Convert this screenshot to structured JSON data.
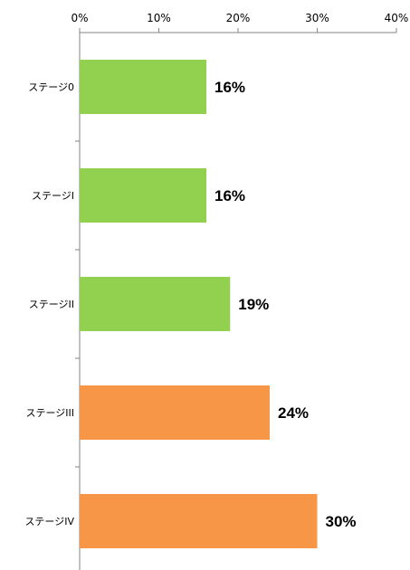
{
  "chart_data": {
    "type": "bar",
    "orientation": "horizontal",
    "title": "",
    "xlabel": "",
    "ylabel": "",
    "categories": [
      "ステージ0",
      "ステージI",
      "ステージII",
      "ステージIII",
      "ステージIV"
    ],
    "values": [
      16,
      16,
      19,
      24,
      30
    ],
    "data_labels": [
      "16%",
      "16%",
      "19%",
      "24%",
      "30%"
    ],
    "bar_colors": [
      "#92d050",
      "#92d050",
      "#92d050",
      "#f79646",
      "#f79646"
    ],
    "x_ticks": [
      "0%",
      "10%",
      "20%",
      "30%",
      "40%"
    ],
    "xlim": [
      0,
      40
    ],
    "x_axis_position": "top",
    "grid": false,
    "legend": "none"
  }
}
